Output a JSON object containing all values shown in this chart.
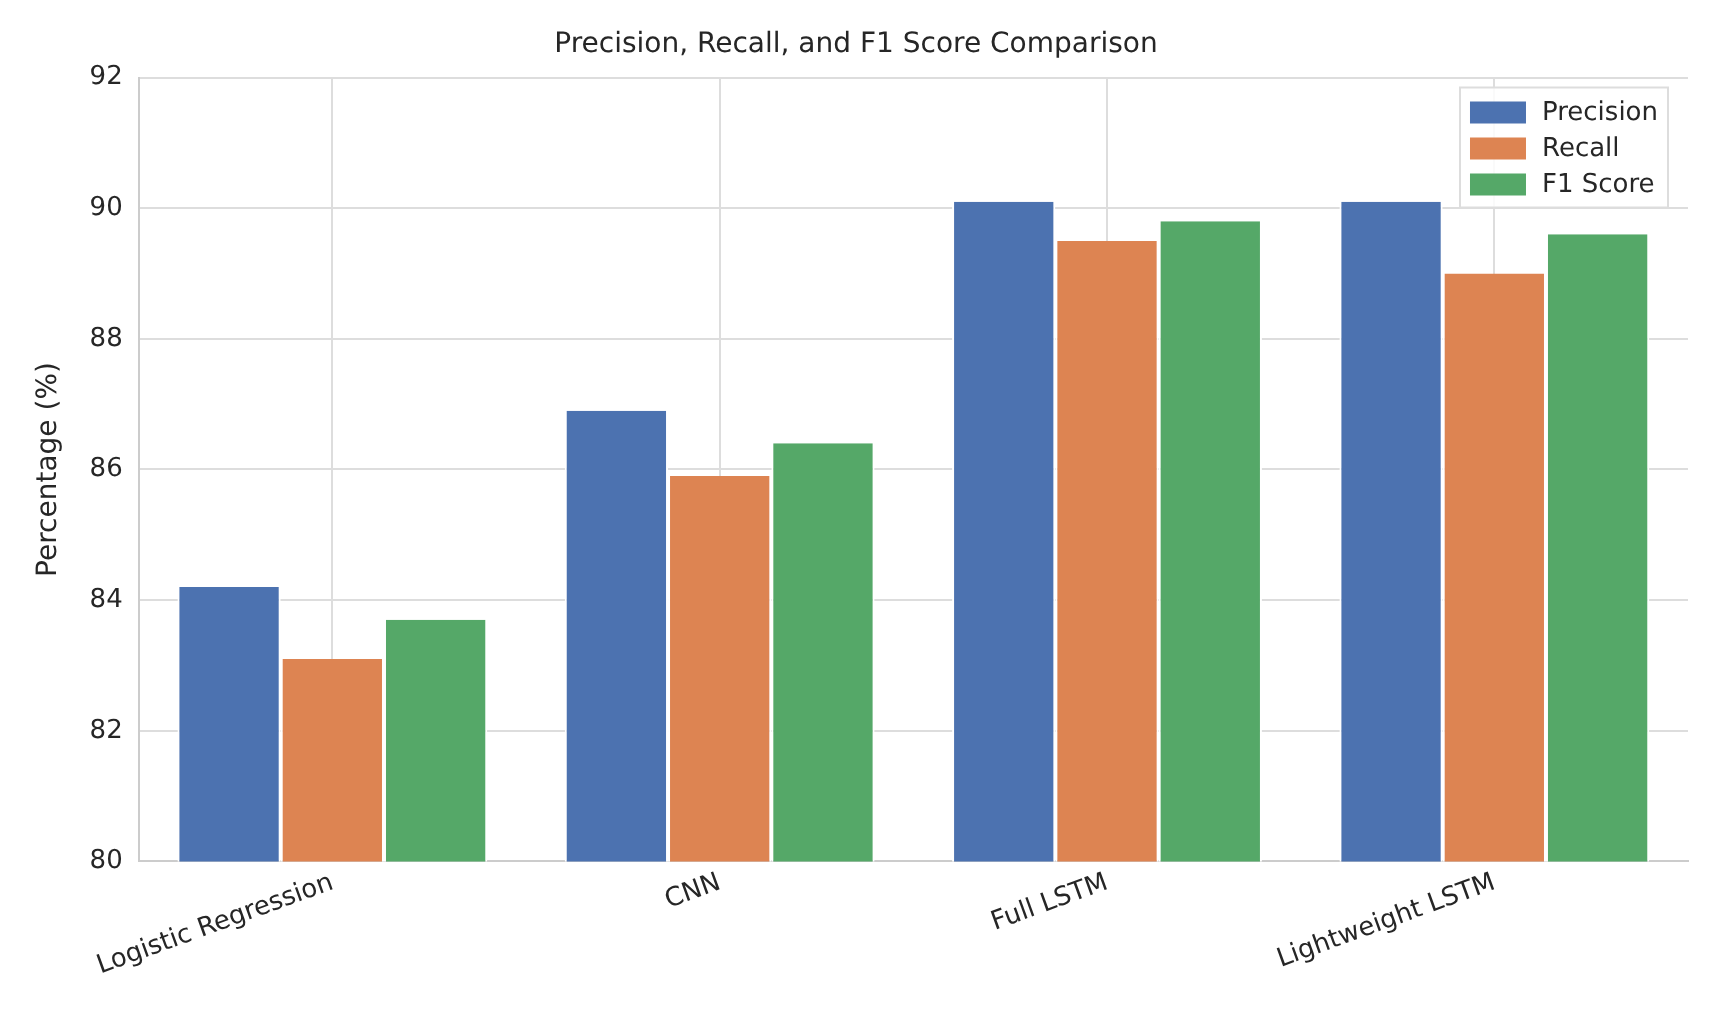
{
  "chart_data": {
    "type": "bar",
    "title": "Precision, Recall, and F1 Score Comparison",
    "ylabel": "Percentage (%)",
    "categories": [
      "Logistic Regression",
      "CNN",
      "Full LSTM",
      "Lightweight LSTM"
    ],
    "series": [
      {
        "name": "Precision",
        "color": "#4c72b0",
        "values": [
          84.2,
          86.9,
          90.1,
          90.1
        ]
      },
      {
        "name": "Recall",
        "color": "#dd8452",
        "values": [
          83.1,
          85.9,
          89.5,
          89.0
        ]
      },
      {
        "name": "F1 Score",
        "color": "#55a868",
        "values": [
          83.7,
          86.4,
          89.8,
          89.6
        ]
      }
    ],
    "ylim": [
      80,
      92
    ],
    "yticks": [
      80,
      82,
      84,
      86,
      88,
      90,
      92
    ],
    "grid": true,
    "legend": "top right"
  }
}
